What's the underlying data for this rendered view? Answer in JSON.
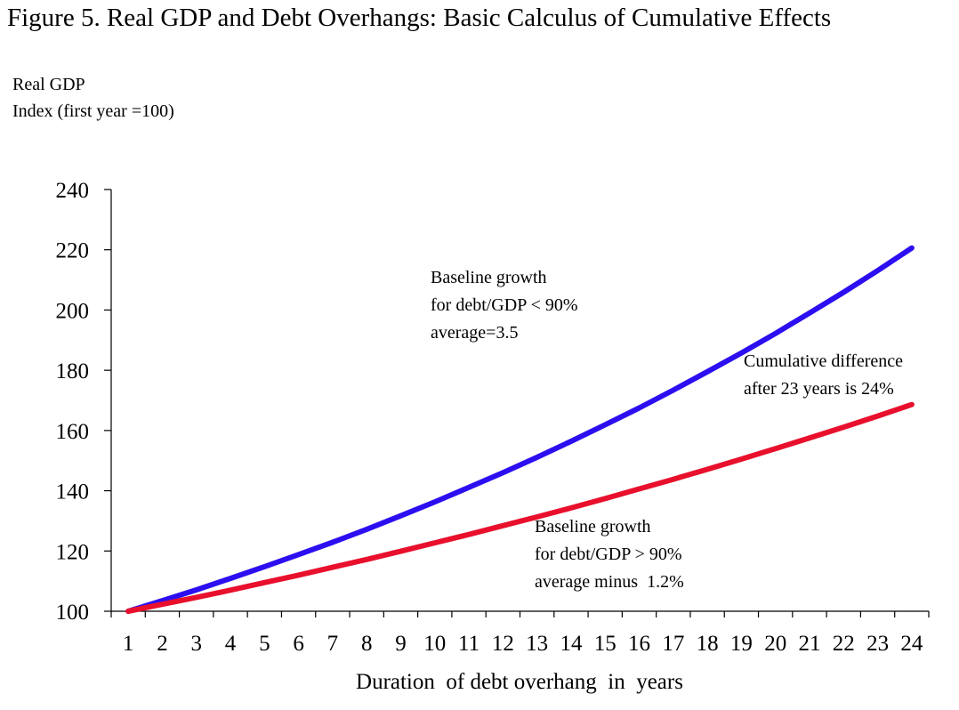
{
  "chart_data": {
    "type": "line",
    "title": "Figure 5. Real GDP and Debt Overhangs: Basic Calculus of Cumulative Effects",
    "ylabel_lines": [
      "Real GDP",
      "Index (first year =100)"
    ],
    "xlabel": "Duration  of debt overhang  in  years",
    "x": [
      1,
      2,
      3,
      4,
      5,
      6,
      7,
      8,
      9,
      10,
      11,
      12,
      13,
      14,
      15,
      16,
      17,
      18,
      19,
      20,
      21,
      22,
      23,
      24
    ],
    "ylim": [
      100,
      240
    ],
    "yticks": [
      100,
      120,
      140,
      160,
      180,
      200,
      220,
      240
    ],
    "grid": false,
    "series": [
      {
        "color": "#2b0ff0",
        "values": [
          100,
          103.5,
          107.1,
          110.9,
          114.8,
          118.8,
          122.9,
          127.2,
          131.7,
          136.3,
          141.1,
          146.0,
          151.1,
          156.4,
          161.9,
          167.5,
          173.4,
          179.5,
          185.7,
          192.2,
          199.0,
          205.9,
          213.1,
          220.6
        ]
      },
      {
        "color": "#e8102c",
        "values": [
          100,
          102.3,
          104.6,
          107.0,
          109.5,
          112.0,
          114.6,
          117.2,
          119.9,
          122.7,
          125.5,
          128.4,
          131.3,
          134.3,
          137.4,
          140.6,
          143.8,
          147.1,
          150.5,
          154.0,
          157.5,
          161.1,
          164.8,
          168.6
        ]
      }
    ],
    "annotations": [
      {
        "lines": [
          "Baseline growth",
          "for debt/GDP < 90%",
          "average=3.5"
        ]
      },
      {
        "lines": [
          "Cumulative difference",
          "after 23 years is 24%"
        ]
      },
      {
        "lines": [
          "Baseline growth",
          "for debt/GDP > 90%",
          "average minus  1.2%"
        ]
      }
    ]
  }
}
